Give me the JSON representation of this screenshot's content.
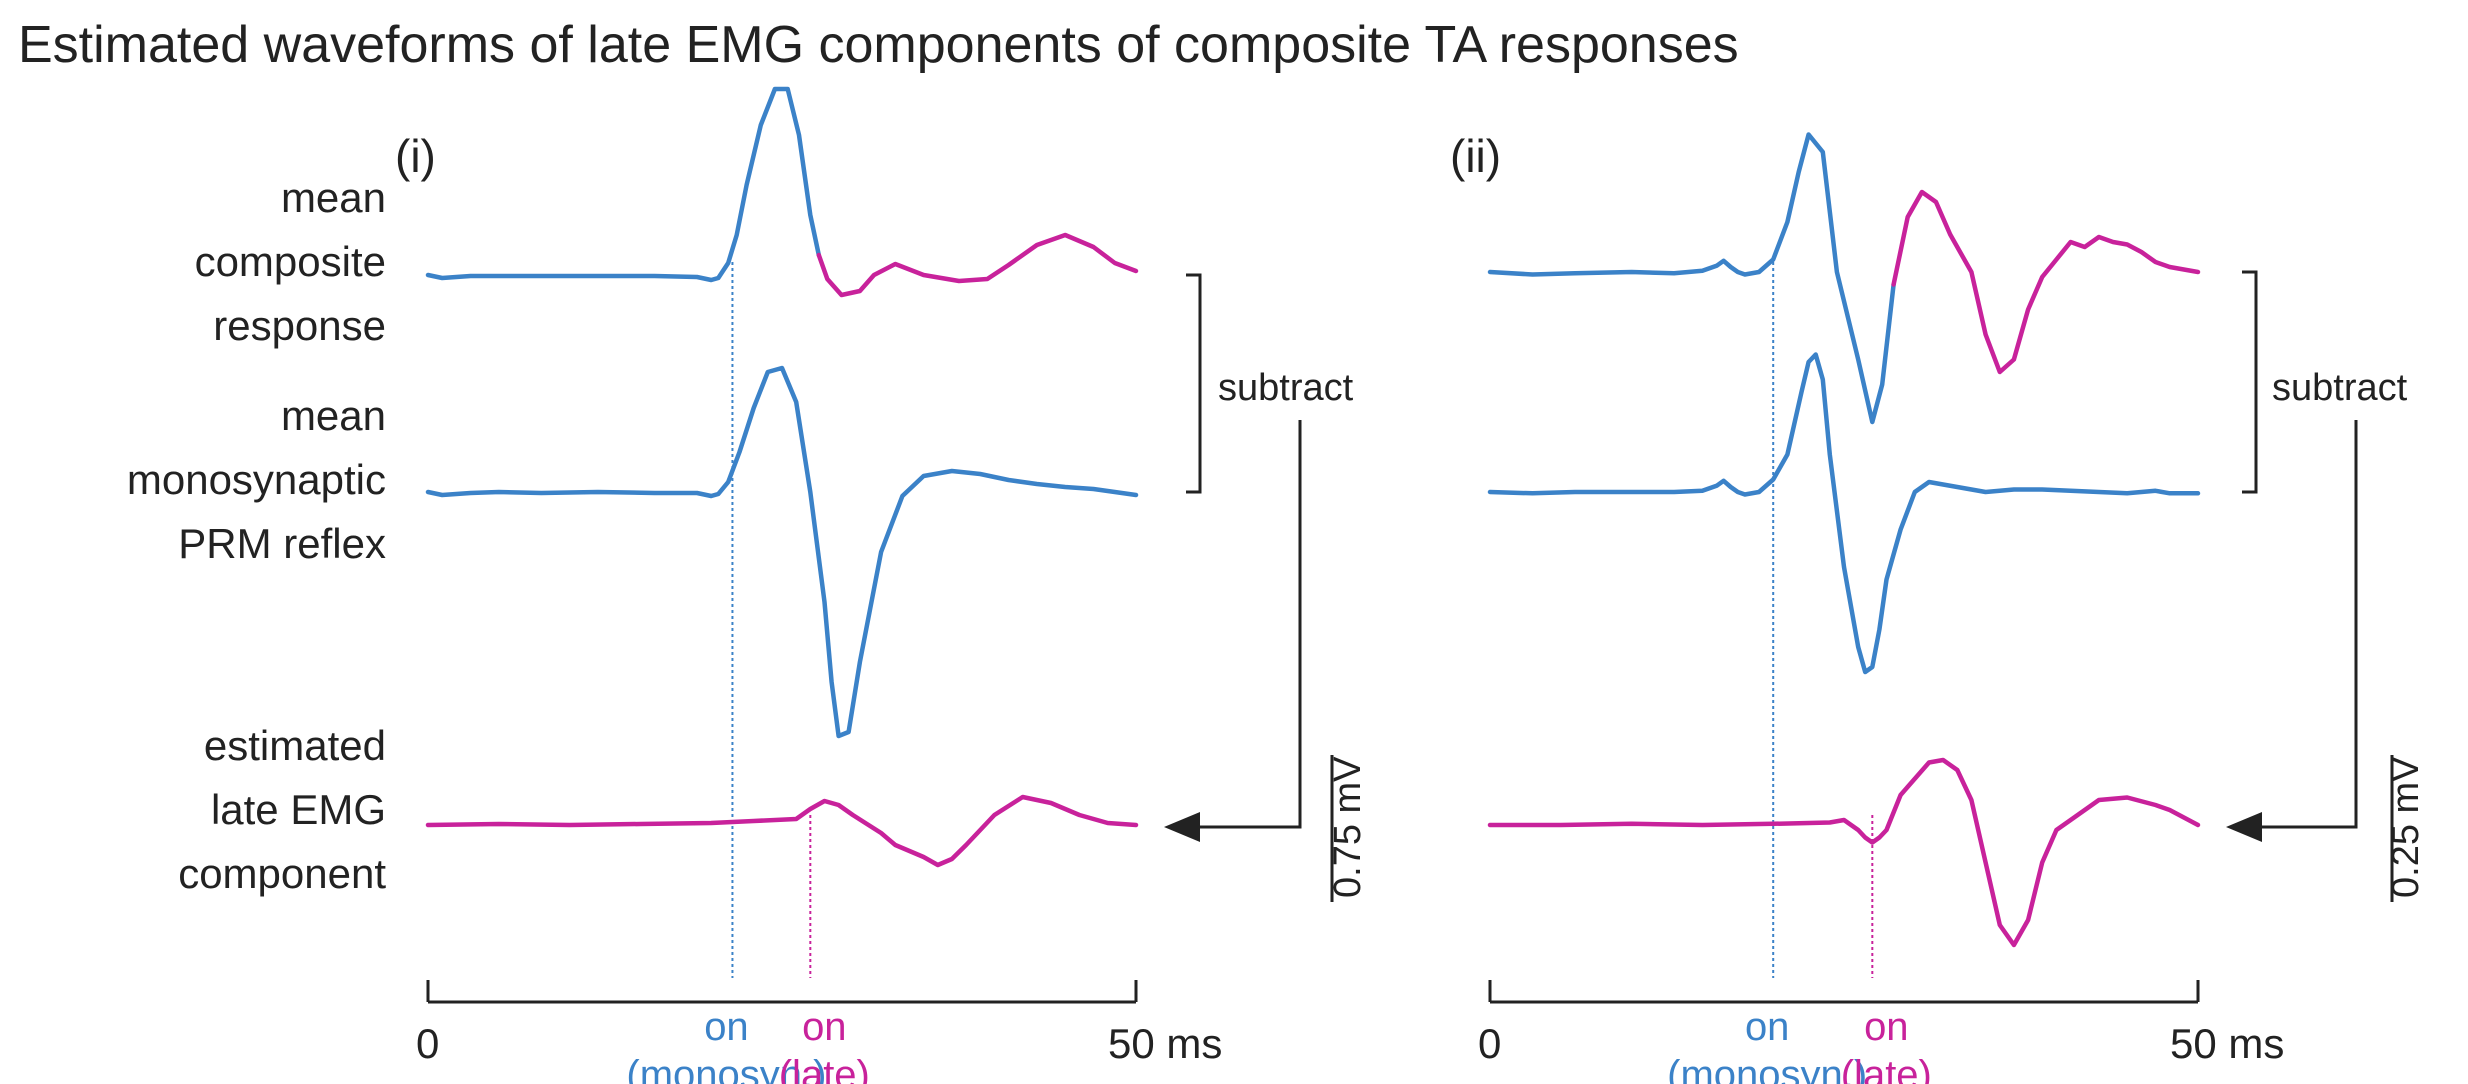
{
  "colors": {
    "blue": "#3b82c8",
    "magenta": "#c8229b",
    "black": "#222222"
  },
  "chart_data": {
    "type": "line",
    "title": "Estimated waveforms of late EMG components of composite TA responses",
    "row_labels": {
      "composite": [
        "mean",
        "composite",
        "response"
      ],
      "mono": [
        "mean",
        "monosynaptic",
        "PRM reflex"
      ],
      "late": [
        "estimated",
        "late EMG",
        "component"
      ]
    },
    "subtract_label": "subtract",
    "x_axis": {
      "start_label": "0",
      "end_label": "50 ms",
      "range_ms": [
        0,
        50
      ]
    },
    "panels": [
      {
        "label": "(i)",
        "scale_bar": "0.75 mV",
        "onset_monosyn_ms": 21.5,
        "onset_late_ms": 27.0,
        "onset_labels": {
          "monosyn_top": "on",
          "monosyn_bottom": "(monosyn.)",
          "late_top": "on",
          "late_bottom": "(late)"
        },
        "series": [
          {
            "name": "mean composite response",
            "x": [
              0,
              1,
              2,
              3,
              5,
              8,
              12,
              16,
              19,
              20,
              20.5,
              21.2,
              21.8,
              22.5,
              23.5,
              24.5,
              25.4,
              26.2,
              27.0,
              27.6,
              28.2,
              29.2,
              30.5,
              31.5,
              33,
              35,
              37.5,
              39.5,
              41,
              43,
              45,
              47,
              48.5,
              50
            ],
            "y": [
              0,
              -0.015,
              -0.01,
              -0.005,
              -0.005,
              -0.005,
              -0.005,
              -0.005,
              -0.01,
              -0.025,
              -0.015,
              0.06,
              0.2,
              0.45,
              0.75,
              0.93,
              0.93,
              0.7,
              0.3,
              0.1,
              -0.02,
              -0.1,
              -0.08,
              0.0,
              0.055,
              0.0,
              -0.03,
              -0.02,
              0.05,
              0.15,
              0.2,
              0.14,
              0.06,
              0.02
            ],
            "late_from_ms": 27.5
          },
          {
            "name": "mean monosynaptic PRM reflex",
            "x": [
              0,
              1,
              2,
              3,
              5,
              8,
              12,
              16,
              19,
              20,
              20.5,
              21.2,
              22,
              23,
              24,
              25,
              26,
              27,
              28,
              28.5,
              29,
              29.7,
              30.5,
              32,
              33.5,
              35,
              37,
              39,
              41,
              43,
              45,
              47,
              48.5,
              50
            ],
            "y": [
              0,
              -0.015,
              -0.01,
              -0.005,
              0.0,
              -0.005,
              0.0,
              -0.005,
              -0.005,
              -0.02,
              -0.01,
              0.05,
              0.2,
              0.42,
              0.6,
              0.62,
              0.45,
              0.0,
              -0.55,
              -0.95,
              -1.22,
              -1.2,
              -0.85,
              -0.3,
              -0.02,
              0.08,
              0.105,
              0.09,
              0.06,
              0.04,
              0.025,
              0.015,
              0.0,
              -0.015
            ]
          },
          {
            "name": "estimated late EMG component",
            "x": [
              0,
              5,
              10,
              15,
              20,
              23,
              26,
              27,
              28,
              29,
              30,
              32,
              33,
              35,
              36,
              37,
              38,
              40,
              42,
              44,
              46,
              48,
              50
            ],
            "y": [
              0,
              0.005,
              0.0,
              0.005,
              0.01,
              0.02,
              0.03,
              0.08,
              0.12,
              0.1,
              0.05,
              -0.04,
              -0.1,
              -0.16,
              -0.2,
              -0.17,
              -0.1,
              0.05,
              0.14,
              0.11,
              0.05,
              0.01,
              0.0
            ]
          }
        ]
      },
      {
        "label": "(ii)",
        "scale_bar": "0.25 mV",
        "onset_monosyn_ms": 20.0,
        "onset_late_ms": 27.0,
        "onset_labels": {
          "monosyn_top": "on",
          "monosyn_bottom": "(monosyn.)",
          "late_top": "on",
          "late_bottom": "(late)"
        },
        "series": [
          {
            "name": "mean composite response",
            "x": [
              0,
              3,
              6,
              10,
              13,
              15,
              16,
              16.5,
              17,
              17.5,
              18,
              19,
              20,
              21,
              21.8,
              22.5,
              23.5,
              24.5,
              26,
              27,
              27.7,
              28.5,
              29.5,
              30.5,
              31.5,
              32.5,
              34,
              35,
              36,
              37,
              38,
              39,
              40,
              41,
              42,
              43,
              44,
              45,
              46,
              47,
              48,
              50
            ],
            "y": [
              0,
              -0.01,
              -0.005,
              0.0,
              -0.005,
              0.005,
              0.025,
              0.045,
              0.02,
              0.0,
              -0.01,
              0.0,
              0.05,
              0.2,
              0.4,
              0.55,
              0.48,
              0.0,
              -0.35,
              -0.6,
              -0.45,
              -0.05,
              0.22,
              0.32,
              0.28,
              0.15,
              0.0,
              -0.25,
              -0.4,
              -0.35,
              -0.15,
              -0.02,
              0.05,
              0.12,
              0.1,
              0.14,
              0.12,
              0.11,
              0.08,
              0.04,
              0.02,
              0.0
            ],
            "late_from_ms": 27.8
          },
          {
            "name": "mean monosynaptic PRM reflex",
            "x": [
              0,
              3,
              6,
              10,
              13,
              15,
              16,
              16.5,
              17,
              17.5,
              18,
              19,
              20,
              21,
              22,
              22.5,
              23,
              23.5,
              24,
              25,
              26,
              26.5,
              27,
              27.5,
              28,
              29,
              30,
              31,
              32,
              33,
              35,
              37,
              39,
              41,
              43,
              45,
              47,
              48,
              50
            ],
            "y": [
              0,
              -0.005,
              0.0,
              0.0,
              0.0,
              0.005,
              0.025,
              0.045,
              0.02,
              0.0,
              -0.01,
              0.0,
              0.05,
              0.15,
              0.4,
              0.52,
              0.55,
              0.45,
              0.15,
              -0.3,
              -0.62,
              -0.72,
              -0.7,
              -0.55,
              -0.35,
              -0.15,
              0.0,
              0.04,
              0.03,
              0.02,
              0.0,
              0.01,
              0.01,
              0.005,
              0.0,
              -0.005,
              0.005,
              -0.005,
              -0.005
            ]
          },
          {
            "name": "estimated late EMG component",
            "x": [
              0,
              5,
              10,
              15,
              20,
              24,
              25,
              26,
              26.5,
              27,
              27.5,
              28,
              29,
              31,
              32,
              33,
              34,
              35,
              36,
              37,
              38,
              39,
              40,
              41,
              43,
              45,
              47,
              48,
              50
            ],
            "y": [
              0,
              0.0,
              0.005,
              0.0,
              0.005,
              0.01,
              0.02,
              -0.02,
              -0.05,
              -0.07,
              -0.05,
              -0.02,
              0.12,
              0.25,
              0.26,
              0.22,
              0.1,
              -0.15,
              -0.4,
              -0.48,
              -0.38,
              -0.15,
              -0.02,
              0.02,
              0.1,
              0.11,
              0.08,
              0.06,
              0.0
            ]
          }
        ]
      }
    ]
  }
}
